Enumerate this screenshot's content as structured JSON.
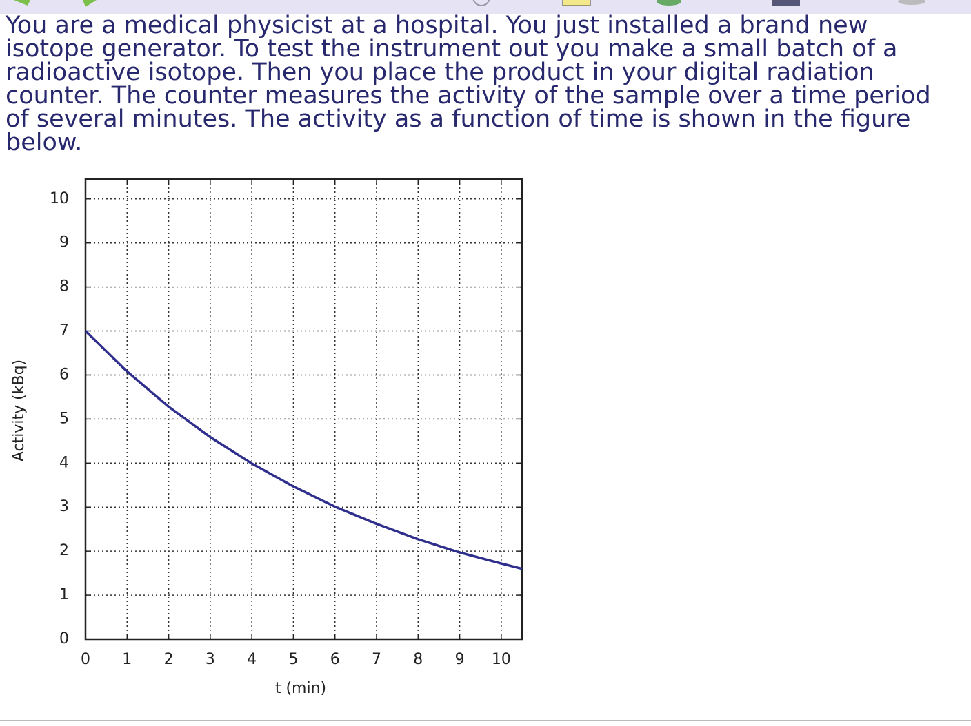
{
  "question": {
    "lines": [
      "You are a medical physicist at a hospital. You just installed a brand new",
      "isotope generator. To test the instrument out you make a small batch of a",
      "radioactive isotope. Then you place the product in your digital radiation",
      "counter. The counter measures the activity of the sample over a time period",
      "of several minutes. The activity as a function of time is shown in the figure",
      "below."
    ]
  },
  "chart_data": {
    "type": "line",
    "x_label": "t (min)",
    "y_label": "Activity (kBq)",
    "x": [
      0,
      1,
      2,
      3,
      4,
      5,
      6,
      7,
      8,
      9,
      10,
      10.5
    ],
    "series": [
      {
        "color": "#2e2e8c",
        "values": [
          7,
          6.08,
          5.28,
          4.59,
          3.99,
          3.47,
          3.01,
          2.62,
          2.27,
          1.97,
          1.72,
          1.6
        ]
      }
    ],
    "xlim": [
      0,
      10.5
    ],
    "ylim": [
      0,
      10.45
    ],
    "xticks": [
      0,
      1,
      2,
      3,
      4,
      5,
      6,
      7,
      8,
      9,
      10
    ],
    "yticks": [
      0,
      1,
      2,
      3,
      4,
      5,
      6,
      7,
      8,
      9,
      10
    ],
    "grid": true
  }
}
